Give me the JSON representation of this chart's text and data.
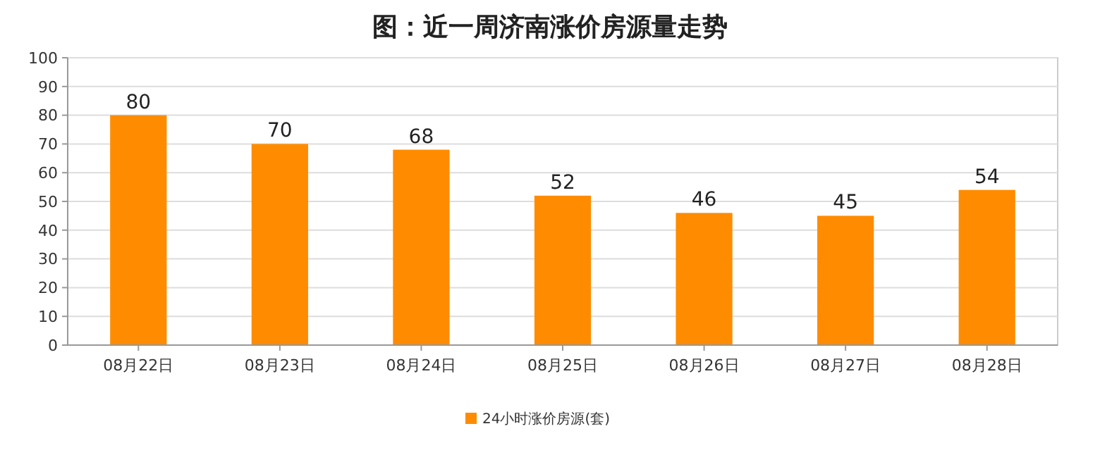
{
  "chart_data": {
    "type": "bar",
    "title": "图：近一周济南涨价房源量走势",
    "categories": [
      "08月22日",
      "08月23日",
      "08月24日",
      "08月25日",
      "08月26日",
      "08月27日",
      "08月28日"
    ],
    "series": [
      {
        "name": "24小时涨价房源(套)",
        "color": "#ff8c00",
        "values": [
          80,
          70,
          68,
          52,
          46,
          45,
          54
        ]
      }
    ],
    "ylim": [
      0,
      100
    ],
    "yticks": [
      0,
      10,
      20,
      30,
      40,
      50,
      60,
      70,
      80,
      90,
      100
    ],
    "grid": "y",
    "data_labels": true,
    "legend": "bottom"
  }
}
